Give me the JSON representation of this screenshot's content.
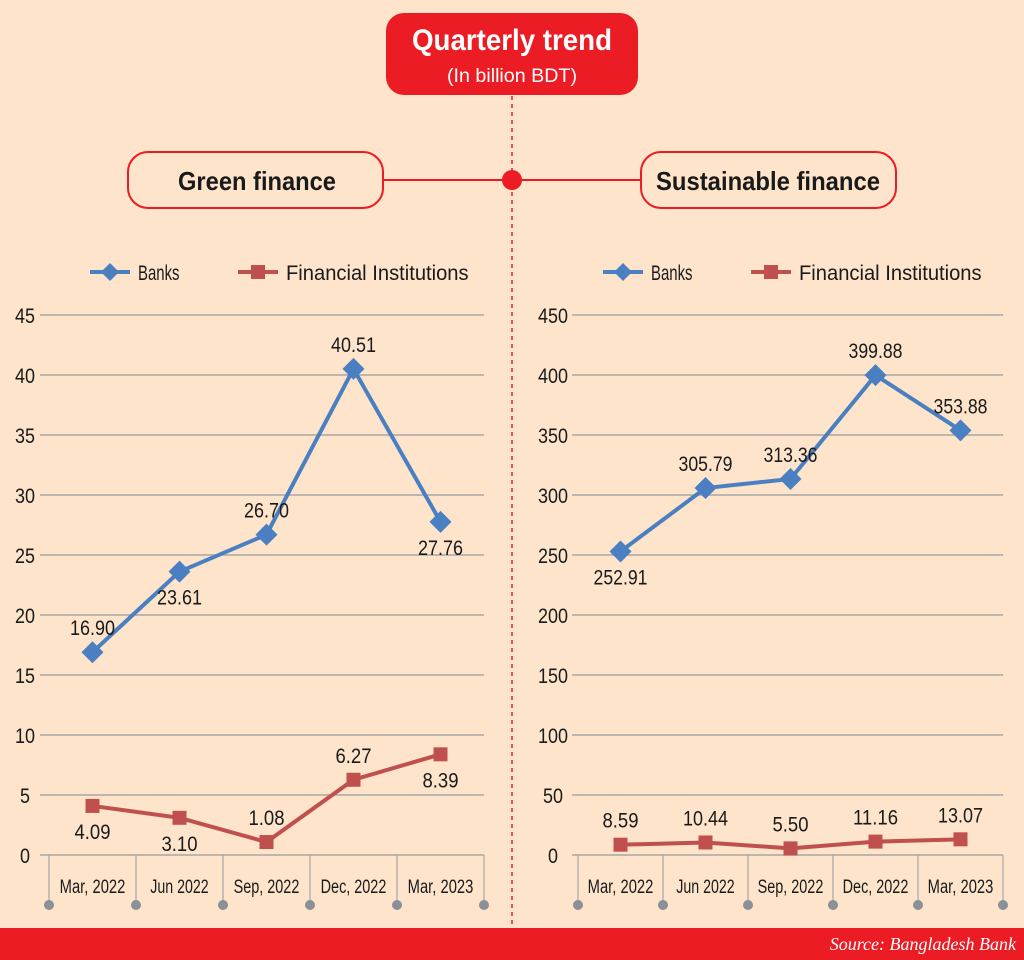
{
  "header": {
    "title": "Quarterly trend",
    "subtitle": "(In billion BDT)"
  },
  "footer": {
    "source": "Source: Bangladesh Bank"
  },
  "colors": {
    "background": "#fde4cb",
    "accent_red": "#ec1c24",
    "banks": "#4a7fc1",
    "financial_institutions": "#c0504d",
    "grid": "#a6a6a6"
  },
  "chart_data": [
    {
      "type": "line",
      "title": "Green finance",
      "categories": [
        "Mar, 2022",
        "Jun 2022",
        "Sep, 2022",
        "Dec, 2022",
        "Mar, 2023"
      ],
      "ylim": [
        0,
        45
      ],
      "yticks": [
        0,
        5,
        10,
        15,
        20,
        25,
        30,
        35,
        40,
        45
      ],
      "grid": true,
      "legend": "top",
      "series": [
        {
          "name": "Banks",
          "marker": "diamond",
          "values": [
            16.9,
            23.61,
            26.7,
            40.51,
            27.76
          ],
          "labels": [
            "16.90",
            "23.61",
            "26.70",
            "40.51",
            "27.76"
          ]
        },
        {
          "name": "Financial Institutions",
          "marker": "square",
          "values": [
            4.09,
            3.1,
            1.08,
            6.27,
            8.39
          ],
          "labels": [
            "4.09",
            "3.10",
            "1.08",
            "6.27",
            "8.39"
          ]
        }
      ]
    },
    {
      "type": "line",
      "title": "Sustainable finance",
      "categories": [
        "Mar, 2022",
        "Jun 2022",
        "Sep, 2022",
        "Dec, 2022",
        "Mar, 2023"
      ],
      "ylim": [
        0,
        450
      ],
      "yticks": [
        0,
        50,
        100,
        150,
        200,
        250,
        300,
        350,
        400,
        450
      ],
      "grid": true,
      "legend": "top",
      "series": [
        {
          "name": "Banks",
          "marker": "diamond",
          "values": [
            252.91,
            305.79,
            313.36,
            399.88,
            353.88
          ],
          "labels": [
            "252.91",
            "305.79",
            "313.36",
            "399.88",
            "353.88"
          ]
        },
        {
          "name": "Financial Institutions",
          "marker": "square",
          "values": [
            8.59,
            10.44,
            5.5,
            11.16,
            13.07
          ],
          "labels": [
            "8.59",
            "10.44",
            "5.50",
            "11.16",
            "13.07"
          ]
        }
      ]
    }
  ]
}
